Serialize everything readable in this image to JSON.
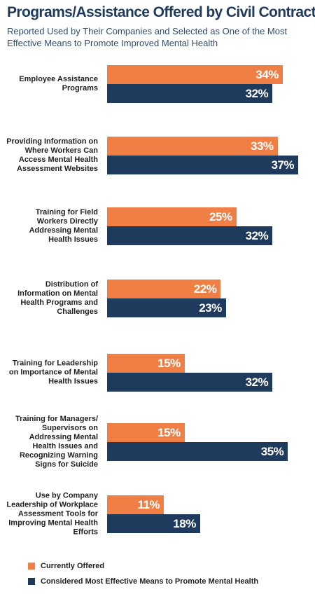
{
  "chart_data": {
    "type": "hbar",
    "title": "Programs/Assistance Offered by Civil Contractors",
    "subtitle": "Reported Used by Their Companies and Selected as One of the Most Effective Means to Promote Improved Mental Health",
    "categories": [
      "Employee Assistance Programs",
      "Providing Information on Where Workers Can Access Mental Health Assessment Websites",
      "Training for Field Workers Directly Addressing Mental Health Issues",
      "Distribution of Information on Mental Health Programs and Challenges",
      "Training for Leadership on Importance of Mental Health Issues",
      "Training for Managers/ Supervisors on Addressing Mental Health Issues and Recognizing Warning Signs for Suicide",
      "Use by Company Leadership of Workplace Assessment Tools for Improving Mental Health Efforts"
    ],
    "series": [
      {
        "name": "Currently Offered",
        "color": "#ef7f45",
        "values": [
          34,
          33,
          25,
          22,
          15,
          15,
          11
        ],
        "value_labels": [
          "34%",
          "33%",
          "25%",
          "22%",
          "15%",
          "15%",
          "11%"
        ]
      },
      {
        "name": "Considered Most Effective Means to Promote Mental Health",
        "color": "#1e3a5c",
        "values": [
          32,
          37,
          32,
          23,
          32,
          35,
          18
        ],
        "value_labels": [
          "32%",
          "37%",
          "32%",
          "23%",
          "32%",
          "35%",
          "18%"
        ]
      }
    ]
  }
}
